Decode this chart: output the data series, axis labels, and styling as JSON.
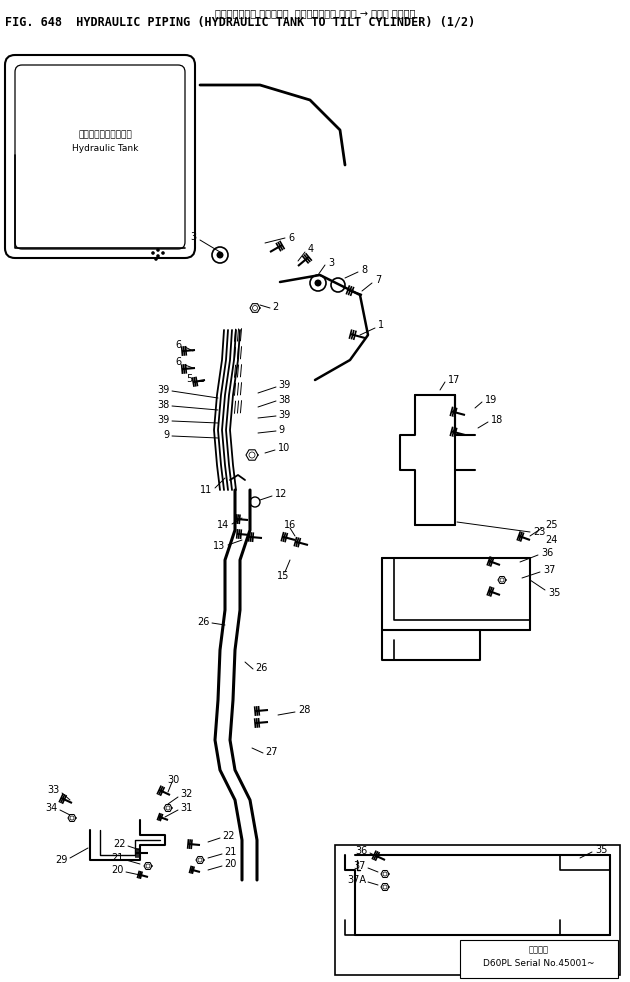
{
  "title_jp": "ハイドロリック パイピング  ハイドロリック タンク → チルト シリンダ",
  "title_en": "FIG. 648  HYDRAULIC PIPING (HYDRAULIC TANK TO TILT CYLINDER) (1/2)",
  "serial_jp": "適用機種",
  "serial_en": "D60PL Serial No.45001~",
  "tank_label_jp": "ハイドロリックタンク",
  "tank_label_en": "Hydraulic Tank",
  "bg_color": "#ffffff",
  "line_color": "#000000",
  "text_color": "#000000"
}
